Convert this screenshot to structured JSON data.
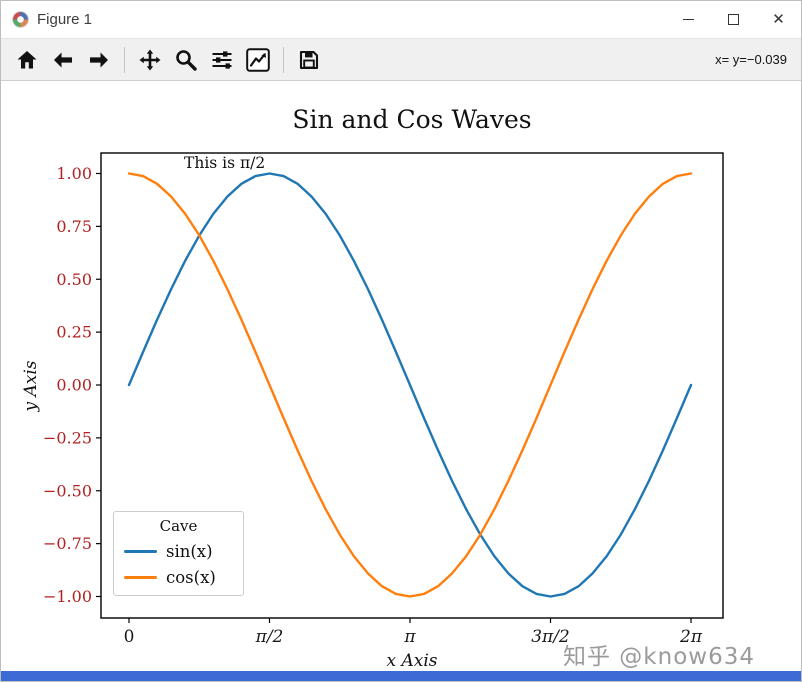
{
  "window": {
    "title": "Figure 1",
    "controls": [
      "minimize",
      "maximize",
      "close"
    ]
  },
  "toolbar": {
    "buttons": [
      "home",
      "back",
      "forward",
      "pan",
      "zoom",
      "configure-subplots",
      "edit-parameters",
      "save"
    ],
    "status": "x= y=−0.039"
  },
  "watermark": "知乎 @know634",
  "chart_data": {
    "type": "line",
    "title": "Sin and Cos Waves",
    "xlabel": "x Axis",
    "ylabel": "y Axis",
    "annotation": {
      "text": "This is π/2",
      "x": 0.6,
      "y": 1.03
    },
    "x_min": 0,
    "x_max": 6.28319,
    "xlim": [
      -0.31,
      6.6
    ],
    "ylim": [
      -1.1,
      1.1
    ],
    "grid": false,
    "legend": {
      "title": "Cave",
      "position": "lower left",
      "entries": [
        {
          "label": "sin(x)",
          "color": "#1f77b4"
        },
        {
          "label": "cos(x)",
          "color": "#ff7f0e"
        }
      ]
    },
    "xticks": {
      "values": [
        0,
        1.5708,
        3.14159,
        4.71239,
        6.28319
      ],
      "labels": [
        "0",
        "π/2",
        "π",
        "3π/2",
        "2π"
      ],
      "color": "#1a1a1a"
    },
    "yticks": {
      "values": [
        1,
        0.75,
        0.5,
        0.25,
        0,
        -0.25,
        -0.5,
        -0.75,
        -1
      ],
      "labels": [
        "1.00",
        "0.75",
        "0.50",
        "0.25",
        "0.00",
        "−0.25",
        "−0.50",
        "−0.75",
        "−1.00"
      ],
      "color": "#b22222"
    },
    "series": [
      {
        "name": "sin",
        "color": "#1f77b4",
        "values": [
          0,
          0.1564,
          0.309,
          0.454,
          0.5878,
          0.7071,
          0.809,
          0.891,
          0.9511,
          0.9877,
          1,
          0.9877,
          0.9511,
          0.891,
          0.809,
          0.7071,
          0.5878,
          0.454,
          0.309,
          0.1564,
          0,
          -0.1564,
          -0.309,
          -0.454,
          -0.5878,
          -0.7071,
          -0.809,
          -0.891,
          -0.9511,
          -0.9877,
          -1,
          -0.9877,
          -0.9511,
          -0.891,
          -0.809,
          -0.7071,
          -0.5878,
          -0.454,
          -0.309,
          -0.1564,
          0
        ]
      },
      {
        "name": "cos",
        "color": "#ff7f0e",
        "values": [
          1,
          0.9877,
          0.9511,
          0.891,
          0.809,
          0.7071,
          0.5878,
          0.454,
          0.309,
          0.1564,
          0,
          -0.1564,
          -0.309,
          -0.454,
          -0.5878,
          -0.7071,
          -0.809,
          -0.891,
          -0.9511,
          -0.9877,
          -1,
          -0.9877,
          -0.9511,
          -0.891,
          -0.809,
          -0.7071,
          -0.5878,
          -0.454,
          -0.309,
          -0.1564,
          0,
          0.1564,
          0.309,
          0.454,
          0.5878,
          0.7071,
          0.809,
          0.891,
          0.9511,
          0.9877,
          1
        ]
      }
    ]
  }
}
